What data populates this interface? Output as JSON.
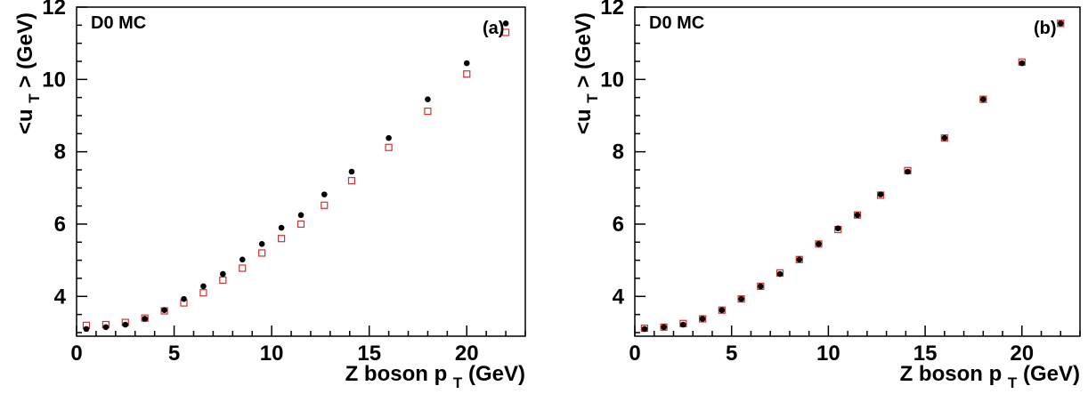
{
  "chart_data": [
    {
      "type": "scatter",
      "panel_label": "D0 MC",
      "panel_tag": "(a)",
      "xlabel_main": "Z boson p",
      "xlabel_sub": "T",
      "xlabel_unit": " (GeV)",
      "ylabel_main": "<u",
      "ylabel_sub": "T",
      "ylabel_unit": "> (GeV)",
      "xlim": [
        0,
        23
      ],
      "ylim": [
        2.9,
        12
      ],
      "xticks": [
        0,
        5,
        10,
        15,
        20
      ],
      "yticks": [
        4,
        6,
        8,
        10,
        12
      ],
      "grid": false,
      "series": [
        {
          "marker": "filled-circle",
          "color": "#000000",
          "points": [
            [
              0.5,
              3.1
            ],
            [
              1.5,
              3.15
            ],
            [
              2.5,
              3.22
            ],
            [
              3.5,
              3.38
            ],
            [
              4.5,
              3.62
            ],
            [
              5.5,
              3.93
            ],
            [
              6.5,
              4.28
            ],
            [
              7.5,
              4.62
            ],
            [
              8.5,
              5.02
            ],
            [
              9.5,
              5.45
            ],
            [
              10.5,
              5.9
            ],
            [
              11.5,
              6.25
            ],
            [
              12.7,
              6.82
            ],
            [
              14.1,
              7.45
            ],
            [
              16.0,
              8.38
            ],
            [
              18.0,
              9.45
            ],
            [
              20.0,
              10.45
            ],
            [
              22.0,
              11.55
            ]
          ]
        },
        {
          "marker": "open-square",
          "color": "#cc3333",
          "points": [
            [
              0.5,
              3.2
            ],
            [
              1.5,
              3.22
            ],
            [
              2.5,
              3.28
            ],
            [
              3.5,
              3.4
            ],
            [
              4.5,
              3.6
            ],
            [
              5.5,
              3.82
            ],
            [
              6.5,
              4.1
            ],
            [
              7.5,
              4.45
            ],
            [
              8.5,
              4.78
            ],
            [
              9.5,
              5.2
            ],
            [
              10.5,
              5.6
            ],
            [
              11.5,
              6.0
            ],
            [
              12.7,
              6.52
            ],
            [
              14.1,
              7.2
            ],
            [
              16.0,
              8.12
            ],
            [
              18.0,
              9.12
            ],
            [
              20.0,
              10.15
            ],
            [
              22.0,
              11.3
            ]
          ]
        }
      ]
    },
    {
      "type": "scatter",
      "panel_label": "D0 MC",
      "panel_tag": "(b)",
      "xlabel_main": "Z boson p",
      "xlabel_sub": "T",
      "xlabel_unit": " (GeV)",
      "ylabel_main": "<u",
      "ylabel_sub": "T",
      "ylabel_unit": "> (GeV)",
      "xlim": [
        0,
        23
      ],
      "ylim": [
        2.9,
        12
      ],
      "xticks": [
        0,
        5,
        10,
        15,
        20
      ],
      "yticks": [
        4,
        6,
        8,
        10,
        12
      ],
      "grid": false,
      "series": [
        {
          "marker": "filled-circle",
          "color": "#000000",
          "points": [
            [
              0.5,
              3.1
            ],
            [
              1.5,
              3.15
            ],
            [
              2.5,
              3.22
            ],
            [
              3.5,
              3.38
            ],
            [
              4.5,
              3.62
            ],
            [
              5.5,
              3.93
            ],
            [
              6.5,
              4.28
            ],
            [
              7.5,
              4.62
            ],
            [
              8.5,
              5.02
            ],
            [
              9.5,
              5.45
            ],
            [
              10.5,
              5.88
            ],
            [
              11.5,
              6.25
            ],
            [
              12.7,
              6.82
            ],
            [
              14.1,
              7.45
            ],
            [
              16.0,
              8.38
            ],
            [
              18.0,
              9.45
            ],
            [
              20.0,
              10.45
            ],
            [
              22.0,
              11.55
            ]
          ]
        },
        {
          "marker": "open-square",
          "color": "#cc3333",
          "points": [
            [
              0.5,
              3.12
            ],
            [
              1.5,
              3.15
            ],
            [
              2.5,
              3.25
            ],
            [
              3.5,
              3.38
            ],
            [
              4.5,
              3.62
            ],
            [
              5.5,
              3.93
            ],
            [
              6.5,
              4.28
            ],
            [
              7.5,
              4.65
            ],
            [
              8.5,
              5.02
            ],
            [
              9.5,
              5.45
            ],
            [
              10.5,
              5.85
            ],
            [
              11.5,
              6.25
            ],
            [
              12.7,
              6.8
            ],
            [
              14.1,
              7.48
            ],
            [
              16.0,
              8.38
            ],
            [
              18.0,
              9.45
            ],
            [
              20.0,
              10.48
            ],
            [
              22.0,
              11.55
            ]
          ]
        }
      ]
    }
  ]
}
